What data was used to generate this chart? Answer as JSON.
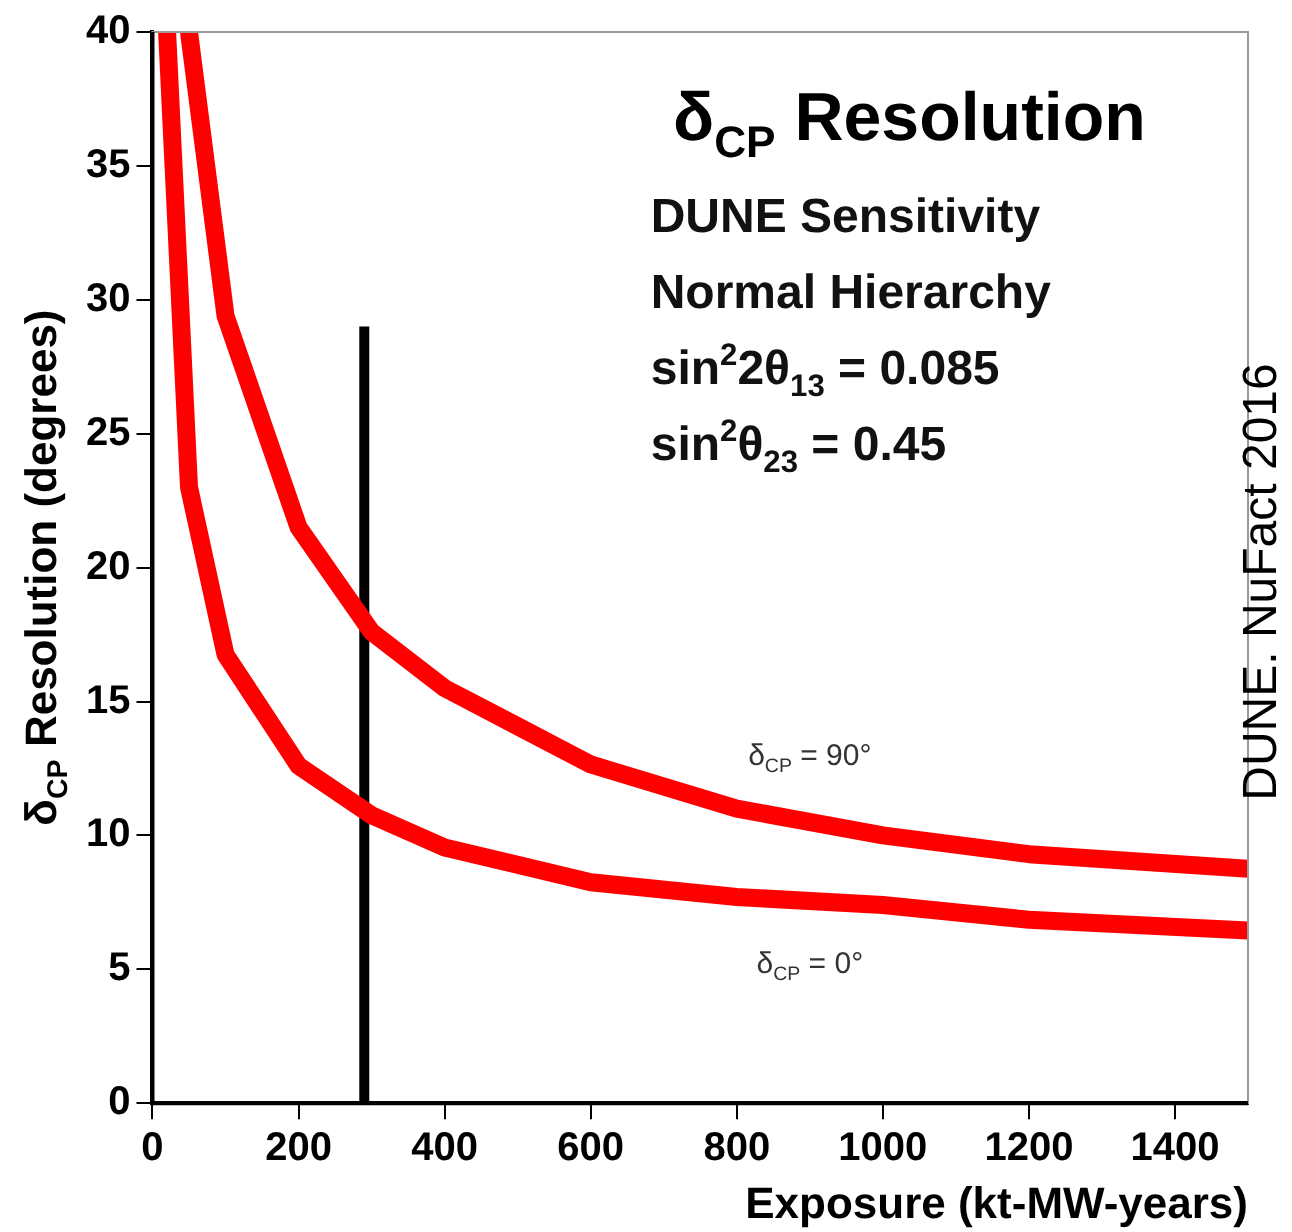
{
  "chart_data": {
    "type": "line",
    "title": "δ$_{CP}$ Resolution",
    "xlabel": "Exposure (kt-MW-years)",
    "ylabel": "δ$_{CP}$ Resolution (degrees)",
    "annotations": [
      "DUNE Sensitivity",
      "Normal Hierarchy",
      "sin$^{2}$2θ$_{13}$ = 0.085",
      "sin$^{2}$θ$_{23}$ = 0.45",
      "DUNE. NuFact 2016"
    ],
    "xlim": [
      0,
      1500
    ],
    "xticks": [
      0,
      200,
      400,
      600,
      800,
      1000,
      1200,
      1400
    ],
    "ylim": [
      0,
      40
    ],
    "yticks": [
      0,
      5,
      10,
      15,
      20,
      25,
      30,
      35,
      40
    ],
    "grid": false,
    "legend": false,
    "marker": "none",
    "line_style": "solid",
    "series": [
      {
        "name": "δ$_{CP}$ = 90°",
        "color": "#ff0000",
        "x": [
          50,
          100,
          200,
          300,
          400,
          600,
          800,
          1000,
          1200,
          1500
        ],
        "values": [
          40,
          29.4,
          21.5,
          17.6,
          15.5,
          12.65,
          11,
          10,
          9.3,
          8.75
        ]
      },
      {
        "name": "δ$_{CP}$ = 0°",
        "color": "#ff0000",
        "x": [
          20,
          50,
          100,
          200,
          300,
          400,
          600,
          800,
          1000,
          1200,
          1500
        ],
        "values": [
          40,
          23,
          16.75,
          12.6,
          10.75,
          9.55,
          8.25,
          7.7,
          7.4,
          6.85,
          6.45
        ]
      },
      {
        "color": "#000000",
        "x": [
          290,
          290
        ],
        "values": [
          0,
          29
        ]
      }
    ]
  }
}
